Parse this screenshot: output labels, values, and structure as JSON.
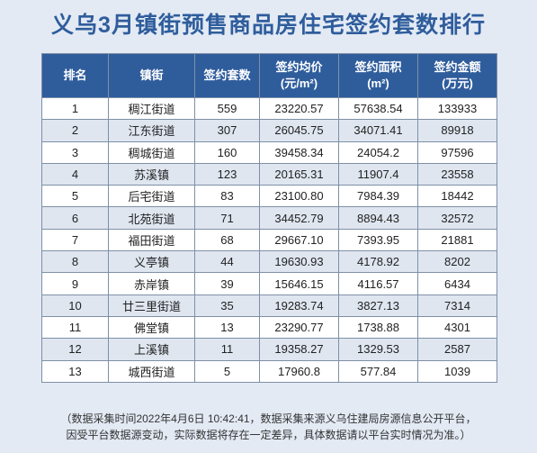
{
  "title": "义乌3月镇街预售商品房住宅签约套数排行",
  "columns": [
    "排名",
    "镇街",
    "签约套数",
    "签约均价\n(元/m²)",
    "签约面积\n(m²)",
    "签约金额\n(万元)"
  ],
  "col_lines": [
    [
      "排名"
    ],
    [
      "镇街"
    ],
    [
      "签约套数"
    ],
    [
      "签约均价",
      "(元/m²)"
    ],
    [
      "签约面积",
      "(m²)"
    ],
    [
      "签约金额",
      "(万元)"
    ]
  ],
  "rows": [
    [
      "1",
      "稠江街道",
      "559",
      "23220.57",
      "57638.54",
      "133933"
    ],
    [
      "2",
      "江东街道",
      "307",
      "26045.75",
      "34071.41",
      "89918"
    ],
    [
      "3",
      "稠城街道",
      "160",
      "39458.34",
      "24054.2",
      "97596"
    ],
    [
      "4",
      "苏溪镇",
      "123",
      "20165.31",
      "11907.4",
      "23558"
    ],
    [
      "5",
      "后宅街道",
      "83",
      "23100.80",
      "7984.39",
      "18442"
    ],
    [
      "6",
      "北苑街道",
      "71",
      "34452.79",
      "8894.43",
      "32572"
    ],
    [
      "7",
      "福田街道",
      "68",
      "29667.10",
      "7393.95",
      "21881"
    ],
    [
      "8",
      "义亭镇",
      "44",
      "19630.93",
      "4178.92",
      "8202"
    ],
    [
      "9",
      "赤岸镇",
      "39",
      "15646.15",
      "4116.57",
      "6434"
    ],
    [
      "10",
      "廿三里街道",
      "35",
      "19283.74",
      "3827.13",
      "7314"
    ],
    [
      "11",
      "佛堂镇",
      "13",
      "23290.77",
      "1738.88",
      "4301"
    ],
    [
      "12",
      "上溪镇",
      "11",
      "19358.27",
      "1329.53",
      "2587"
    ],
    [
      "13",
      "城西街道",
      "5",
      "17960.8",
      "577.84",
      "1039"
    ]
  ],
  "footer": {
    "line1": "（数据采集时间2022年4月6日 10:42:41，数据采集来源义乌住建局房源信息公开平台，",
    "line2": "因受平台数据源变动，实际数据将存在一定差异，具体数据请以平台实时情况为准。）"
  },
  "colors": {
    "header_bg": "#2f5d9c",
    "title": "#2f5d9c",
    "row_alt": "#dfe6f0"
  }
}
